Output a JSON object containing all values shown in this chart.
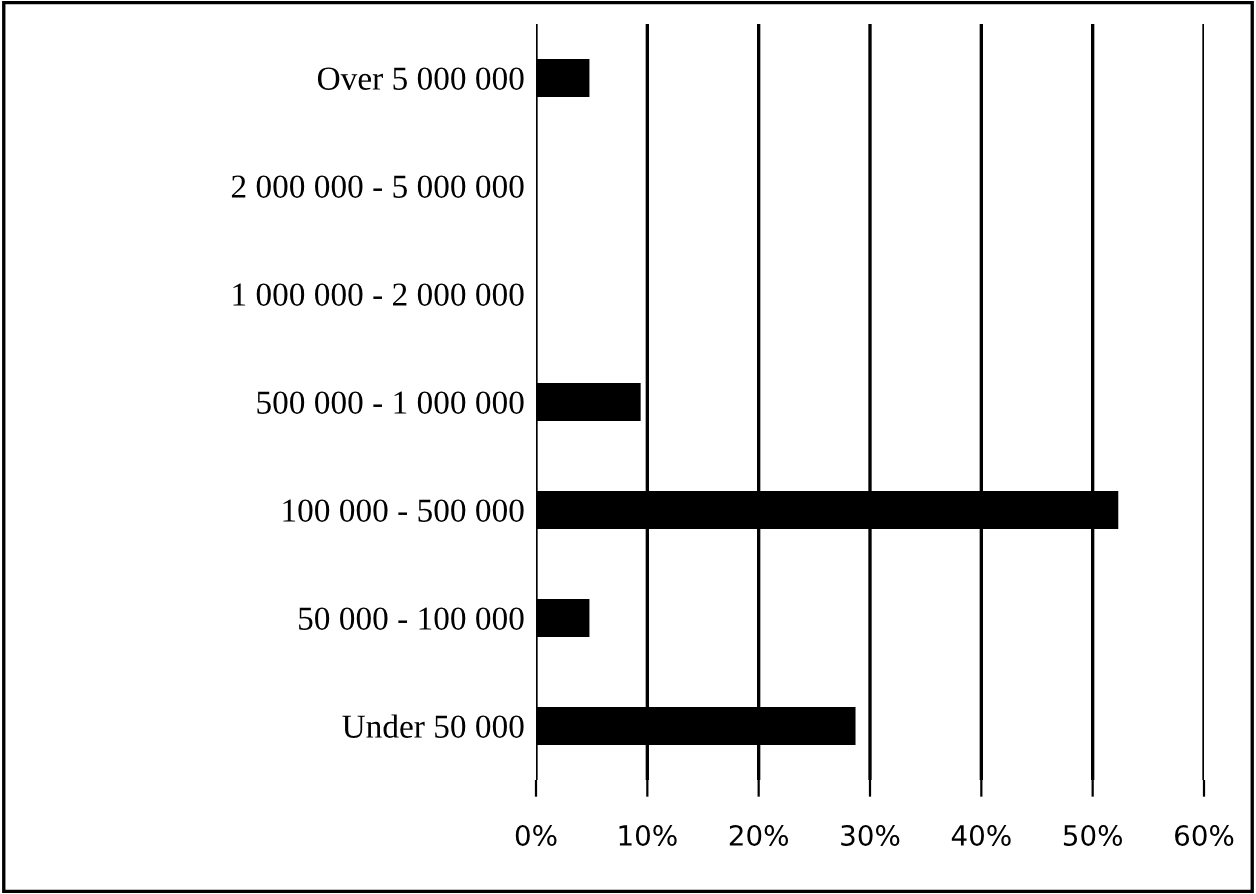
{
  "chart_data": {
    "type": "bar",
    "orientation": "horizontal",
    "categories": [
      "Over 5 000 000",
      "2 000 000 - 5 000 000",
      "1 000 000 - 2 000 000",
      "500 000 - 1 000 000",
      "100 000 - 500 000",
      "50 000 - 100 000",
      "Under 50 000"
    ],
    "values": [
      4.8,
      0,
      0,
      9.4,
      52.3,
      4.8,
      28.7
    ],
    "color": "#000000",
    "xlim": [
      0,
      60
    ],
    "xticks": [
      {
        "value": 0,
        "label": "0%"
      },
      {
        "value": 10,
        "label": "10%"
      },
      {
        "value": 20,
        "label": "20%"
      },
      {
        "value": 30,
        "label": "30%"
      },
      {
        "value": 40,
        "label": "40%"
      },
      {
        "value": 50,
        "label": "50%"
      },
      {
        "value": 60,
        "label": "60%"
      }
    ],
    "grid": "x"
  }
}
